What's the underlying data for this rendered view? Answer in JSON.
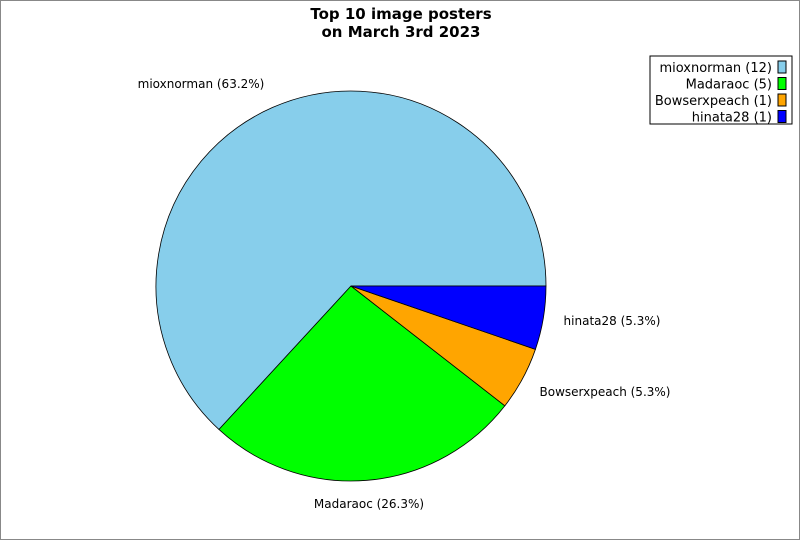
{
  "chart_data": {
    "type": "pie",
    "title_lines": [
      "Top 10 image posters",
      "on March 3rd 2023"
    ],
    "slices": [
      {
        "name": "mioxnorman",
        "count": 12,
        "percent": 63.2,
        "color": "#87ceeb",
        "label": "mioxnorman (63.2%)",
        "legend": "mioxnorman (12)"
      },
      {
        "name": "Madaraoc",
        "count": 5,
        "percent": 26.3,
        "color": "#00ff00",
        "label": "Madaraoc (26.3%)",
        "legend": "Madaraoc (5)"
      },
      {
        "name": "Bowserxpeach",
        "count": 1,
        "percent": 5.3,
        "color": "#ffa500",
        "label": "Bowserxpeach (5.3%)",
        "legend": "Bowserxpeach (1)"
      },
      {
        "name": "hinata28",
        "count": 1,
        "percent": 5.3,
        "color": "#0000ff",
        "label": "hinata28 (5.3%)",
        "legend": "hinata28 (1)"
      }
    ],
    "start_angle_deg": 0,
    "direction": "counterclockwise",
    "legend_position": "top-right"
  }
}
